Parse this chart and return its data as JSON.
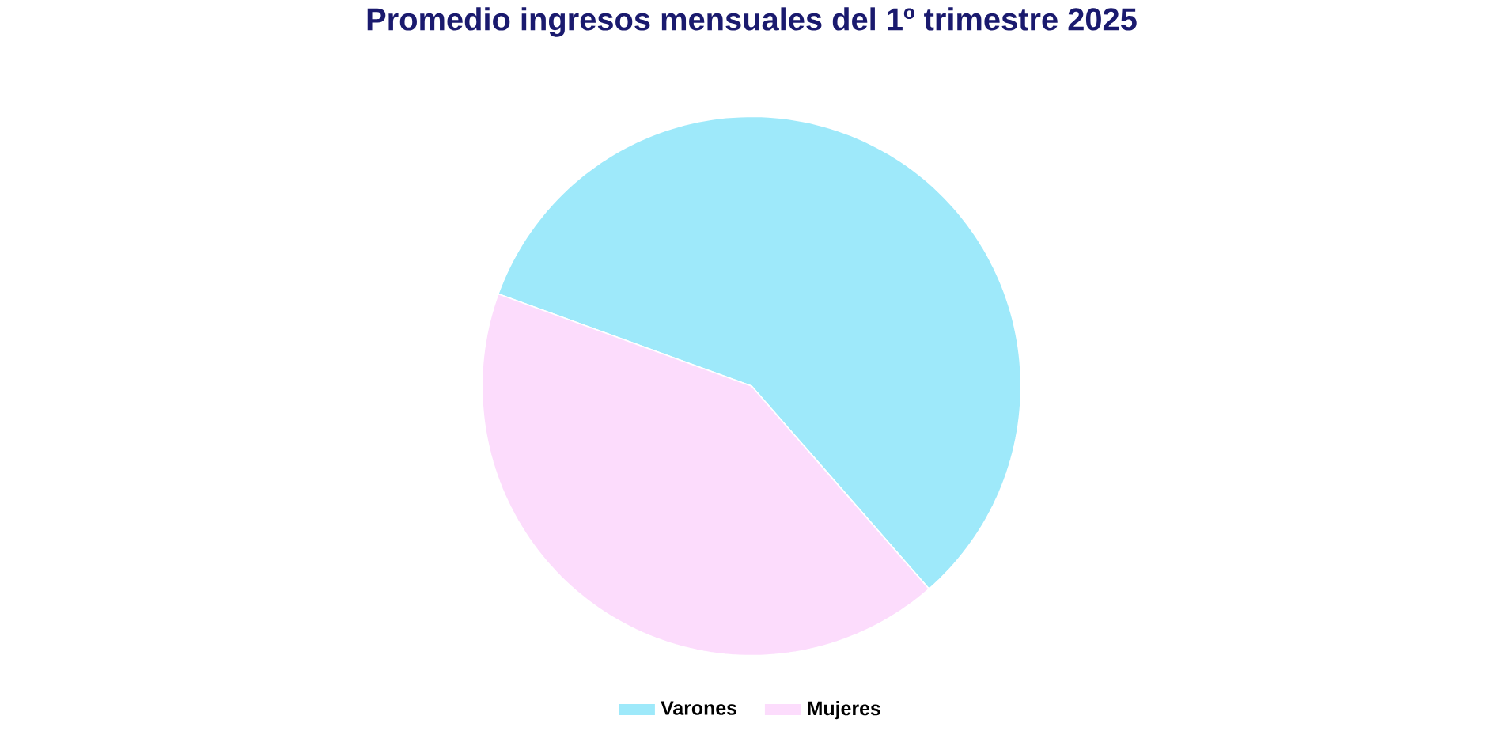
{
  "chart_data": {
    "type": "pie",
    "title": "Promedio ingresos mensuales del 1º trimestre 2025",
    "categories": [
      "Varones",
      "Mujeres"
    ],
    "values": [
      58,
      42
    ],
    "colors": [
      "#9ee9fa",
      "#fcdcfc"
    ],
    "legend": "bottom"
  }
}
